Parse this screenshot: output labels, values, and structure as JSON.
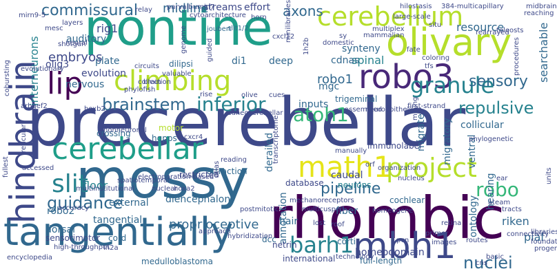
{
  "palette": {
    "purple": "#440154",
    "indigo": "#482878",
    "blue": "#3e4989",
    "slate": "#31688e",
    "teal": "#26828e",
    "sea": "#1f9e89",
    "green": "#35b779",
    "lime": "#6ece58",
    "yellowgreen": "#b5de2b",
    "yellow": "#e5e419"
  },
  "words": [
    "precerebellar",
    "pontine",
    "mossy",
    "rhombic",
    "tangentially",
    "olivary",
    "hindbrain",
    "robo3",
    "climbing",
    "lip",
    "cerebellum",
    "cerebellar",
    "math1",
    "project",
    "mbh1",
    "barh1",
    "slit",
    "granule",
    "brainstem",
    "inferior",
    "atoh1",
    "repulsive",
    "commissural",
    "axons",
    "midline",
    "pipeline",
    "guidance",
    "robo",
    "nuclei",
    "interneurons",
    "embryos",
    "robo1",
    "rig1",
    "auditory",
    "sensory",
    "streams",
    "effort",
    "olig3",
    "spinal",
    "resource",
    "searchable",
    "floor",
    "external",
    "robo2",
    "diencephalon",
    "proprioceptive",
    "dorsal",
    "tangential",
    "database",
    "migrate",
    "fiber",
    "riken",
    "neurons",
    "caudal",
    "ontology",
    "annotation",
    "hearing",
    "pial",
    "collicular",
    "migratory",
    "ventral",
    "sensorimotor",
    "cord",
    "corti",
    "dcc",
    "netrin",
    "hair",
    "homeodomain",
    "international",
    "full-length",
    "medulloblastoma",
    "attraction",
    "restricted",
    "cochlear",
    "evolution",
    "plate",
    "deep",
    "mgc",
    "cdnas",
    "synteny",
    "nervous",
    "crossing",
    "trigeminal",
    "dilipsi",
    "di1",
    "inputs",
    "joubert",
    "slit1/2",
    "relay",
    "parvalbumin7",
    "horn",
    "mammalian",
    "domestic",
    "fate",
    "sy",
    "mirn9-5",
    "mesc",
    "layers",
    "shotgun",
    "neural",
    "evolutionary",
    "valuable",
    "collection",
    "phylofish",
    "arhgef2",
    "hoxb2",
    "brain",
    "motor",
    "hgpps",
    "cxcr4",
    "nonneuronal",
    "spatiotemporal",
    "electroporation-based",
    "reticular",
    "fullest",
    "accessed",
    "approach",
    "hybridization",
    "high-throughput",
    "lh2a",
    "encyclopedia",
    "transcriptome",
    "reading",
    "orf",
    "manually",
    "organization",
    "atlas",
    "mechanoreceptors",
    "multicusped",
    "homeogene",
    "phylogenetic",
    "ateam",
    "tracts",
    "libraries",
    "foundation",
    "progenitors",
    "units",
    "reaching",
    "midbrain",
    "rearrayed",
    "teleosts",
    "procedures",
    "coloring",
    "tfs",
    "assembled",
    "neuroepithelium",
    "mining",
    "cns",
    "images",
    "routes",
    "connectivity",
    "technology",
    "pcn",
    "primer",
    "retina",
    "nucleus",
    "ear",
    "lost",
    "roof",
    "postmitotic",
    "cues",
    "olive",
    "rise",
    "circuits",
    "multiinstitutional",
    "guided",
    "1h2b",
    "cxcl12",
    "minilibraries",
    "hilostasis",
    "384-multicapillary",
    "cytoarchitecture",
    "cobursting",
    "first-strand",
    "situ",
    "multiplex",
    "large-scale",
    "genome",
    "nuclear",
    "hoxa2",
    "accuracy",
    "derailed",
    "immunolabel",
    "cuneocerebellar",
    "basic"
  ]
}
